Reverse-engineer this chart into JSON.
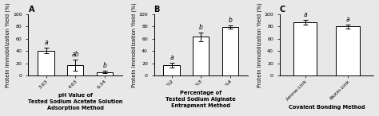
{
  "panel_A": {
    "title": "A",
    "categories": [
      "3.63",
      "4.63",
      "6.34"
    ],
    "values": [
      41,
      17,
      6
    ],
    "errors": [
      4,
      9,
      2
    ],
    "letters": [
      "a",
      "ab",
      "b"
    ],
    "xlabel_line1": "pH Value of",
    "xlabel_line2": "Tested Sodium Acetate Solution",
    "xlabel_line3": "Adsorption Method",
    "ylabel": "Protein Immobilization Yield (%)",
    "ylim": [
      0,
      100
    ],
    "yticks": [
      0,
      20,
      40,
      60,
      80,
      100
    ]
  },
  "panel_B": {
    "title": "B",
    "categories": [
      "%2",
      "%3",
      "%4"
    ],
    "values": [
      17,
      63,
      79
    ],
    "errors": [
      4,
      7,
      3
    ],
    "letters": [
      "a",
      "b",
      "b"
    ],
    "xlabel_line1": "Percentage of",
    "xlabel_line2": "Tested Sodium Alginate",
    "xlabel_line3": "Entrapment Method",
    "ylabel": "Protein Immobilization Yield (%)",
    "ylim": [
      0,
      100
    ],
    "yticks": [
      0,
      20,
      40,
      60,
      80,
      100
    ]
  },
  "panel_C": {
    "title": "C",
    "categories": [
      "Amine-Link",
      "Biotin-Link"
    ],
    "values": [
      87,
      80
    ],
    "errors": [
      4,
      3
    ],
    "letters": [
      "a",
      "a"
    ],
    "xlabel_line1": "Covalent Bonding Method",
    "ylabel": "Protein Immobilization Yield (%)",
    "ylim": [
      0,
      100
    ],
    "yticks": [
      0,
      20,
      40,
      60,
      80,
      100
    ]
  },
  "bar_color": "white",
  "bar_edgecolor": "black",
  "bar_width": 0.55,
  "letter_fontsize": 5.5,
  "label_fontsize": 4.8,
  "tick_fontsize": 4.5,
  "title_fontsize": 7,
  "bg_color": "#e8e8e8"
}
